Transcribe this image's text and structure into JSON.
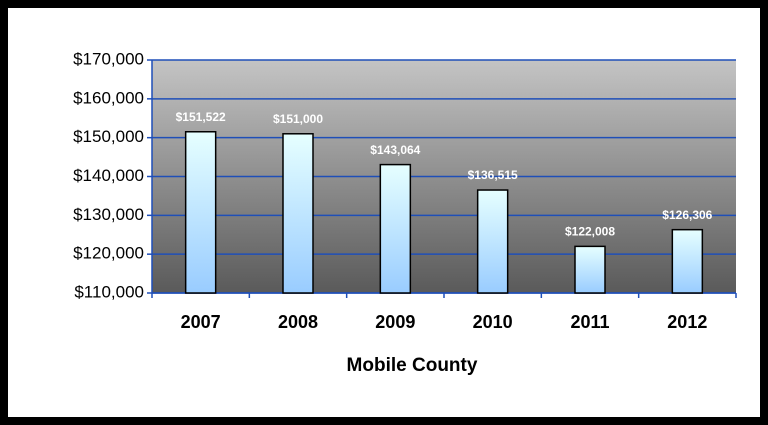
{
  "chart_data": {
    "type": "bar",
    "x_label": "Mobile County",
    "categories": [
      "2007",
      "2008",
      "2009",
      "2010",
      "2011",
      "2012"
    ],
    "values": [
      151522,
      151000,
      143064,
      136515,
      122008,
      126306
    ],
    "value_labels": [
      "$151,522",
      "$151,000",
      "$143,064",
      "$136,515",
      "$122,008",
      "$126,306"
    ],
    "ylim": [
      110000,
      170000
    ],
    "yticks": [
      {
        "value": 110000,
        "label": "$110,000"
      },
      {
        "value": 120000,
        "label": "$120,000"
      },
      {
        "value": 130000,
        "label": "$130,000"
      },
      {
        "value": 140000,
        "label": "$140,000"
      },
      {
        "value": 150000,
        "label": "$150,000"
      },
      {
        "value": 160000,
        "label": "$160,000"
      },
      {
        "value": 170000,
        "label": "$170,000"
      }
    ],
    "grid": true,
    "color": "#99ccff",
    "grid_color": "#1f4fb8"
  }
}
